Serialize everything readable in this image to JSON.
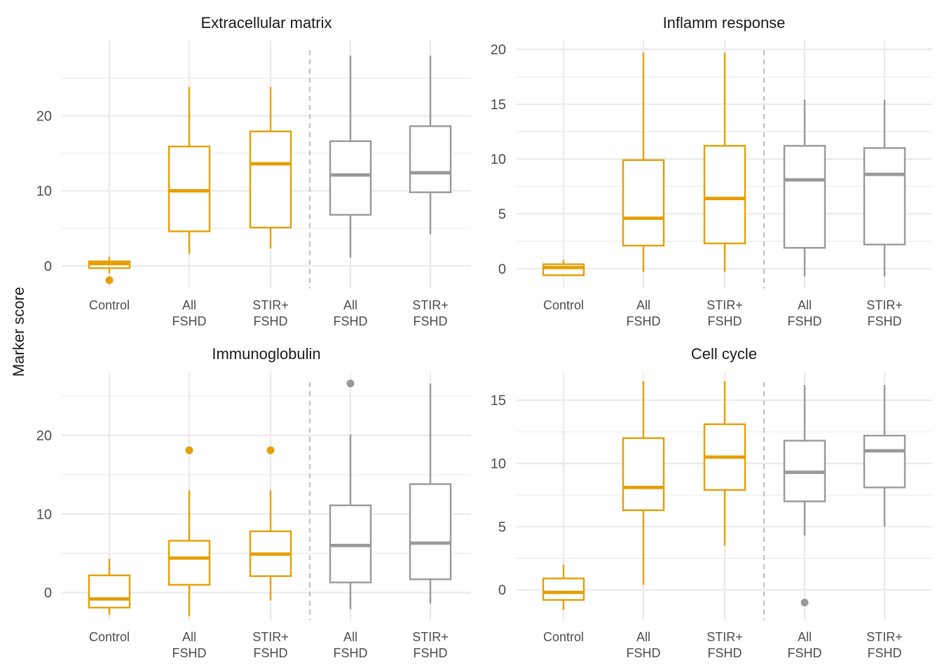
{
  "colors": {
    "fshd_gold": "#E69F00",
    "validation_grey": "#999999",
    "grid": "#ebebeb",
    "divider": "#bdbdbd"
  },
  "ylabel": "Marker score",
  "chart_data": [
    {
      "type": "box",
      "title": "Extracellular matrix",
      "ylim": [
        -3,
        30
      ],
      "yticks": [
        0,
        10,
        20
      ],
      "categories": [
        "Control",
        "All\nFSHD",
        "STIR+\nFSHD",
        "All\nFSHD",
        "STIR+\nFSHD"
      ],
      "boxes": [
        {
          "min": -1.0,
          "q1": -0.3,
          "median": 0.3,
          "q3": 0.6,
          "max": 1.2,
          "outliers": [
            -1.9
          ],
          "color": "gold"
        },
        {
          "min": 1.6,
          "q1": 4.6,
          "median": 10.0,
          "q3": 15.9,
          "max": 23.8,
          "outliers": [],
          "color": "gold"
        },
        {
          "min": 2.3,
          "q1": 5.1,
          "median": 13.6,
          "q3": 17.9,
          "max": 23.8,
          "outliers": [],
          "color": "gold"
        },
        {
          "min": 1.1,
          "q1": 6.8,
          "median": 12.1,
          "q3": 16.6,
          "max": 28.0,
          "outliers": [],
          "color": "grey"
        },
        {
          "min": 4.2,
          "q1": 9.8,
          "median": 12.4,
          "q3": 18.6,
          "max": 28.0,
          "outliers": [],
          "color": "grey"
        }
      ]
    },
    {
      "type": "box",
      "title": "Inflamm response",
      "ylim": [
        -1.8,
        20.8
      ],
      "yticks": [
        0,
        5,
        10,
        15,
        20
      ],
      "categories": [
        "Control",
        "All\nFSHD",
        "STIR+\nFSHD",
        "All\nFSHD",
        "STIR+\nFSHD"
      ],
      "boxes": [
        {
          "min": -0.6,
          "q1": -0.6,
          "median": 0.1,
          "q3": 0.4,
          "max": 0.8,
          "outliers": [],
          "color": "gold"
        },
        {
          "min": -0.3,
          "q1": 2.1,
          "median": 4.6,
          "q3": 9.9,
          "max": 19.7,
          "outliers": [],
          "color": "gold"
        },
        {
          "min": -0.3,
          "q1": 2.3,
          "median": 6.4,
          "q3": 11.2,
          "max": 19.7,
          "outliers": [],
          "color": "gold"
        },
        {
          "min": -0.7,
          "q1": 1.9,
          "median": 8.1,
          "q3": 11.2,
          "max": 15.4,
          "outliers": [],
          "color": "grey"
        },
        {
          "min": -0.7,
          "q1": 2.2,
          "median": 8.6,
          "q3": 11.0,
          "max": 15.4,
          "outliers": [],
          "color": "grey"
        }
      ]
    },
    {
      "type": "box",
      "title": "Immunoglobulin",
      "ylim": [
        -3.5,
        28
      ],
      "yticks": [
        0,
        10,
        20
      ],
      "categories": [
        "Control",
        "All\nFSHD",
        "STIR+\nFSHD",
        "All\nFSHD",
        "STIR+\nFSHD"
      ],
      "boxes": [
        {
          "min": -2.8,
          "q1": -1.9,
          "median": -0.8,
          "q3": 2.2,
          "max": 4.3,
          "outliers": [],
          "color": "gold"
        },
        {
          "min": -3.0,
          "q1": 1.0,
          "median": 4.4,
          "q3": 6.6,
          "max": 13.0,
          "outliers": [
            18.1
          ],
          "color": "gold"
        },
        {
          "min": -1.0,
          "q1": 2.1,
          "median": 4.9,
          "q3": 7.8,
          "max": 13.0,
          "outliers": [
            18.1
          ],
          "color": "gold"
        },
        {
          "min": -2.1,
          "q1": 1.3,
          "median": 6.0,
          "q3": 11.1,
          "max": 20.1,
          "outliers": [
            26.6
          ],
          "color": "grey"
        },
        {
          "min": -1.4,
          "q1": 1.7,
          "median": 6.3,
          "q3": 13.8,
          "max": 26.6,
          "outliers": [],
          "color": "grey"
        }
      ]
    },
    {
      "type": "box",
      "title": "Cell cycle",
      "ylim": [
        -2.4,
        17.2
      ],
      "yticks": [
        0,
        5,
        10,
        15
      ],
      "categories": [
        "Control",
        "All\nFSHD",
        "STIR+\nFSHD",
        "All\nFSHD",
        "STIR+\nFSHD"
      ],
      "boxes": [
        {
          "min": -1.6,
          "q1": -0.8,
          "median": -0.2,
          "q3": 0.9,
          "max": 2.0,
          "outliers": [],
          "color": "gold"
        },
        {
          "min": 0.4,
          "q1": 6.3,
          "median": 8.1,
          "q3": 12.0,
          "max": 16.5,
          "outliers": [],
          "color": "gold"
        },
        {
          "min": 3.5,
          "q1": 7.9,
          "median": 10.5,
          "q3": 13.1,
          "max": 16.5,
          "outliers": [],
          "color": "gold"
        },
        {
          "min": 4.3,
          "q1": 7.0,
          "median": 9.3,
          "q3": 11.8,
          "max": 16.2,
          "outliers": [
            -1.0
          ],
          "color": "grey"
        },
        {
          "min": 5.0,
          "q1": 8.1,
          "median": 11.0,
          "q3": 12.2,
          "max": 16.2,
          "outliers": [],
          "color": "grey"
        }
      ]
    }
  ]
}
